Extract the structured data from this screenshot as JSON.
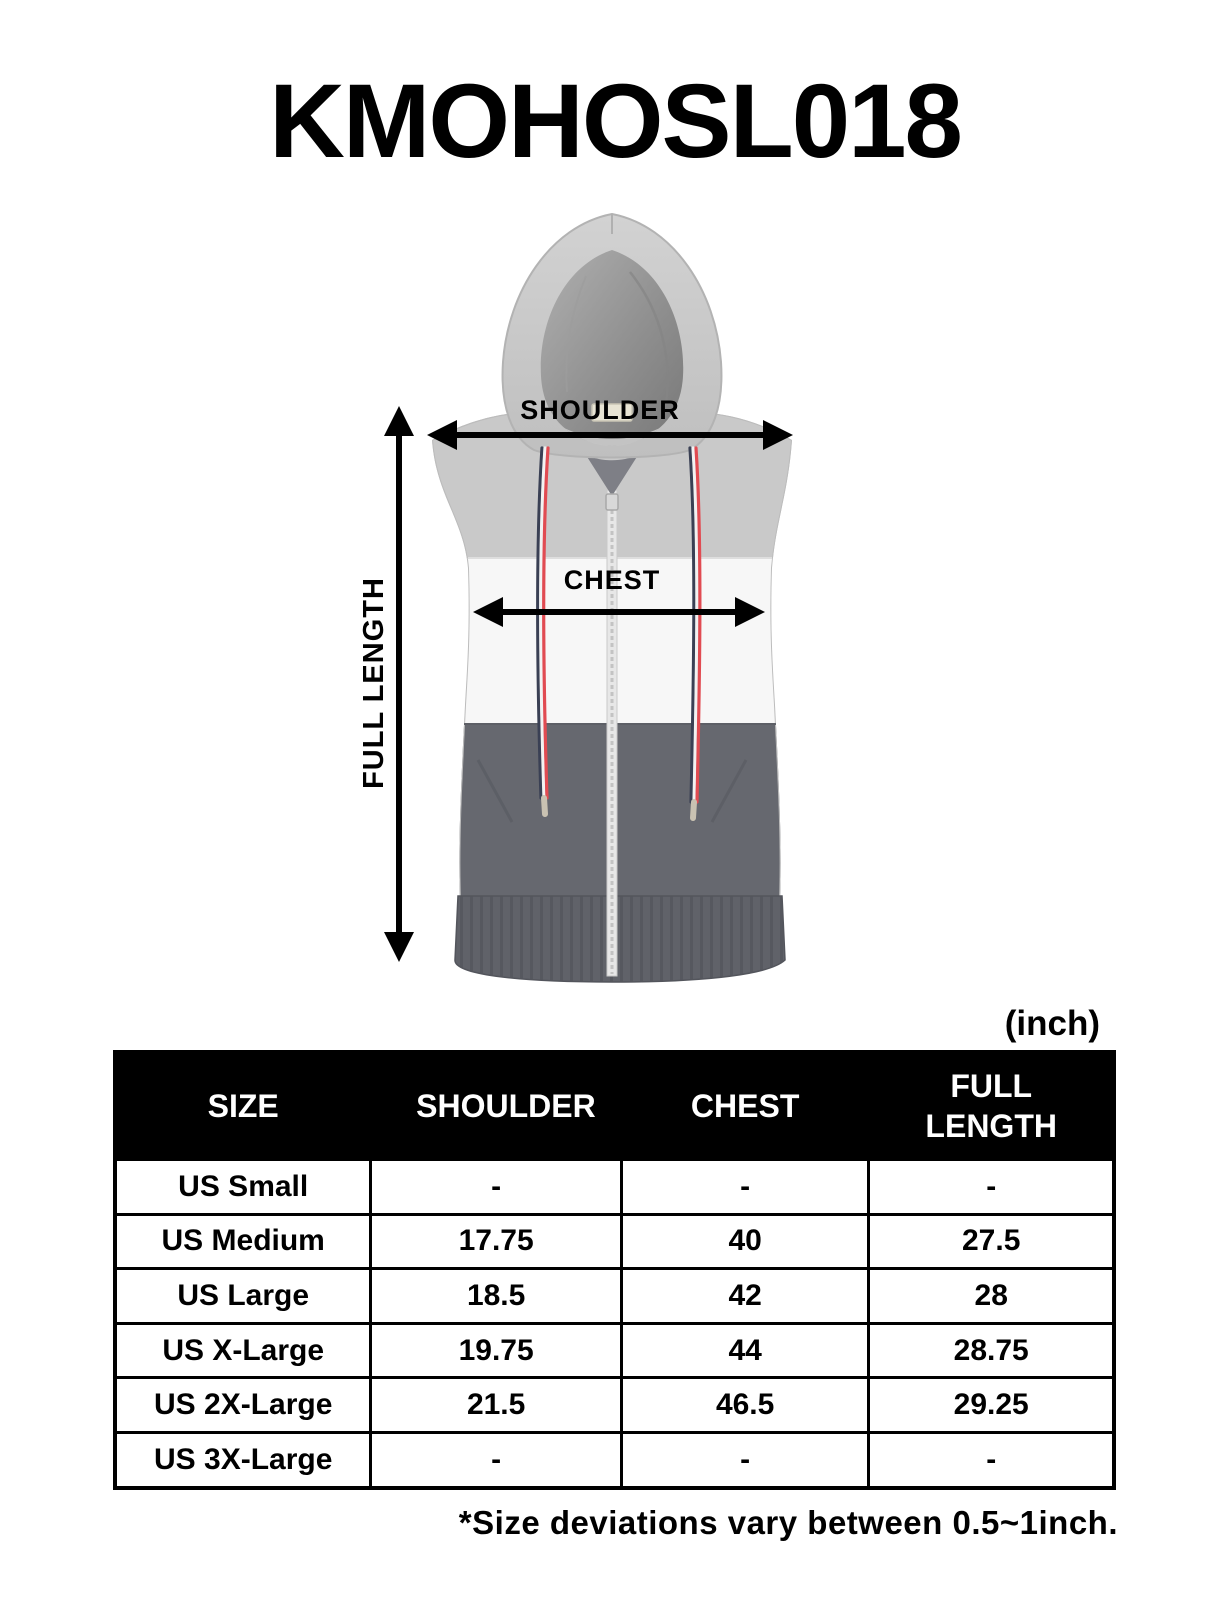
{
  "product_code": "KMOHOSL018",
  "unit_label": "(inch)",
  "diagram": {
    "shoulder_label": "SHOULDER",
    "chest_label": "CHEST",
    "full_length_label": "FULL LENGTH",
    "garment_colors": {
      "hood_top": "#c8c8c8",
      "chest_band": "#f7f7f7",
      "bottom_panel": "#66686f"
    },
    "drawstring_colors": [
      "#3a4054",
      "#f2f2f2",
      "#e14b52"
    ],
    "arrow_color": "#000000"
  },
  "chart_data": {
    "type": "table",
    "title": "KMOHOSL018",
    "unit": "inch",
    "columns": [
      "SIZE",
      "SHOULDER",
      "CHEST",
      "FULL LENGTH"
    ],
    "rows": [
      [
        "US Small",
        "-",
        "-",
        "-"
      ],
      [
        "US Medium",
        "17.75",
        "40",
        "27.5"
      ],
      [
        "US Large",
        "18.5",
        "42",
        "28"
      ],
      [
        "US X-Large",
        "19.75",
        "44",
        "28.75"
      ],
      [
        "US 2X-Large",
        "21.5",
        "46.5",
        "29.25"
      ],
      [
        "US 3X-Large",
        "-",
        "-",
        "-"
      ]
    ],
    "footnote": "*Size deviations vary between 0.5~1inch."
  }
}
